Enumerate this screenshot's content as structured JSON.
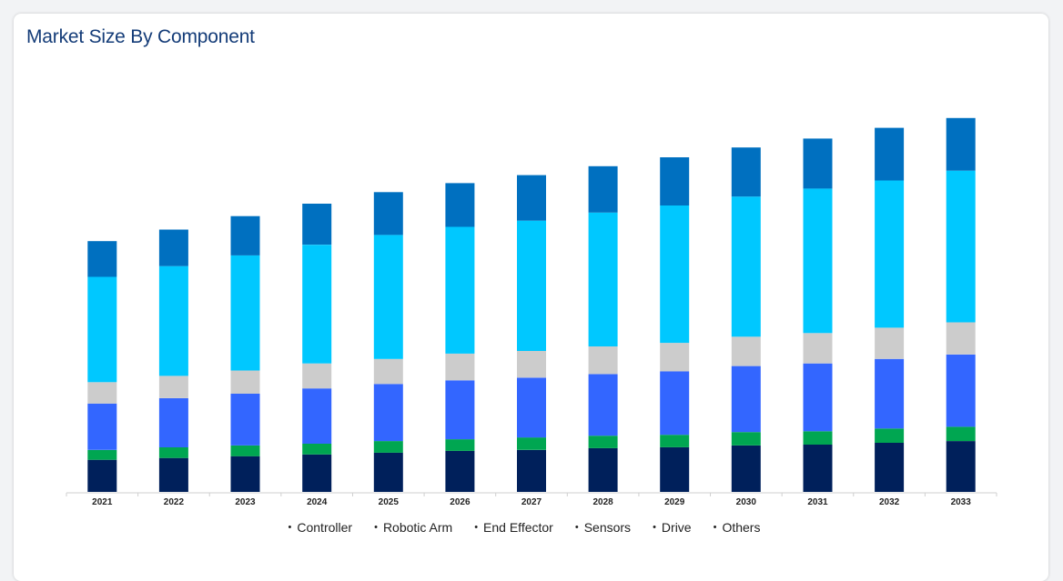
{
  "card": {
    "title": "Market Size By Component"
  },
  "chart_data": {
    "type": "bar",
    "stacked": true,
    "categories": [
      "2021",
      "2022",
      "2023",
      "2024",
      "2025",
      "2026",
      "2027",
      "2028",
      "2029",
      "2030",
      "2031",
      "2032",
      "2033"
    ],
    "series": [
      {
        "name": "Controller",
        "color": "#00205b",
        "values": [
          36,
          38,
          40,
          42,
          44,
          46,
          47,
          49,
          50,
          52,
          53,
          55,
          57
        ]
      },
      {
        "name": "Robotic Arm",
        "color": "#00a651",
        "values": [
          11,
          12,
          12,
          12,
          13,
          13,
          14,
          14,
          14,
          15,
          15,
          16,
          16
        ]
      },
      {
        "name": "End Effector",
        "color": "#3366ff",
        "values": [
          52,
          55,
          58,
          62,
          64,
          66,
          67,
          69,
          71,
          74,
          76,
          78,
          81
        ]
      },
      {
        "name": "Sensors",
        "color": "#cccccc",
        "values": [
          24,
          25,
          26,
          28,
          28,
          30,
          30,
          31,
          32,
          33,
          34,
          35,
          36
        ]
      },
      {
        "name": "Drive",
        "color": "#00c8ff",
        "values": [
          118,
          123,
          129,
          133,
          139,
          142,
          146,
          150,
          154,
          157,
          162,
          165,
          170
        ]
      },
      {
        "name": "Others",
        "color": "#0070c0",
        "values": [
          40,
          41,
          44,
          46,
          48,
          49,
          51,
          52,
          54,
          55,
          56,
          59,
          59
        ]
      }
    ],
    "ylim": [
      0,
      430
    ],
    "grid": false,
    "legend": "bottom-center"
  }
}
